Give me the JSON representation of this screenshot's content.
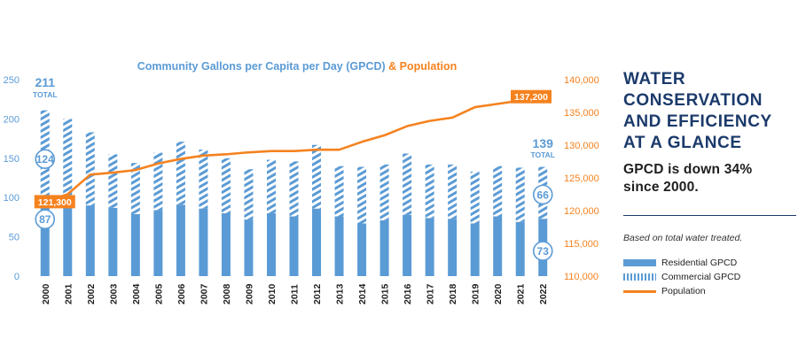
{
  "chart_data": {
    "type": "bar",
    "title": "Community Gallons per Capita per Day (GPCD)",
    "title_suffix": "& Population",
    "categories": [
      "2000",
      "2001",
      "2002",
      "2003",
      "2004",
      "2005",
      "2006",
      "2007",
      "2008",
      "2009",
      "2010",
      "2011",
      "2012",
      "2013",
      "2014",
      "2015",
      "2016",
      "2017",
      "2018",
      "2019",
      "2020",
      "2021",
      "2022"
    ],
    "series": [
      {
        "name": "Residential GPCD",
        "stack": "gpcd",
        "values": [
          87,
          88,
          90,
          87,
          79,
          84,
          91,
          86,
          80,
          72,
          80,
          76,
          86,
          76,
          67,
          71,
          78,
          74,
          73,
          67,
          76,
          69,
          73
        ]
      },
      {
        "name": "Commercial GPCD",
        "stack": "gpcd",
        "values": [
          124,
          112,
          93,
          68,
          65,
          73,
          80,
          75,
          70,
          64,
          68,
          70,
          81,
          64,
          72,
          71,
          78,
          68,
          69,
          66,
          64,
          69,
          66
        ]
      },
      {
        "name": "Population",
        "axis": "right",
        "values": [
          121300,
          122500,
          125500,
          125800,
          126200,
          127200,
          127900,
          128400,
          128600,
          128900,
          129100,
          129100,
          129300,
          129300,
          130500,
          131500,
          132900,
          133700,
          134200,
          135800,
          136300,
          136800,
          137200
        ]
      }
    ],
    "ylim": [
      0,
      250
    ],
    "yticks": [
      0,
      50,
      100,
      150,
      200,
      250
    ],
    "y2lim": [
      110000,
      140000
    ],
    "y2ticks": [
      110000,
      115000,
      120000,
      125000,
      130000,
      135000,
      140000
    ],
    "y2ticklabels": [
      "110,000",
      "115,000",
      "120,000",
      "125,000",
      "130,000",
      "135,000",
      "140,000"
    ],
    "annotations": {
      "total_start": "211",
      "total_end": "139",
      "total_word": "TOTAL",
      "commercial_start": "124",
      "residential_start": "87",
      "commercial_end": "66",
      "residential_end": "73",
      "population_start": "121,300",
      "population_end": "137,200"
    },
    "colors": {
      "residential": "#5b9bd5",
      "population": "#f5821f",
      "label_blue": "#5b9bd5",
      "axis_orange": "#f5821f"
    }
  },
  "sidebar": {
    "title": "WATER CONSERVATION AND EFFICIENCY AT A GLANCE",
    "subtitle": "GPCD is down 34% since 2000.",
    "note": "Based on total water treated.",
    "legend": [
      {
        "label": "Residential GPCD"
      },
      {
        "label": "Commercial GPCD"
      },
      {
        "label": "Population"
      }
    ]
  }
}
